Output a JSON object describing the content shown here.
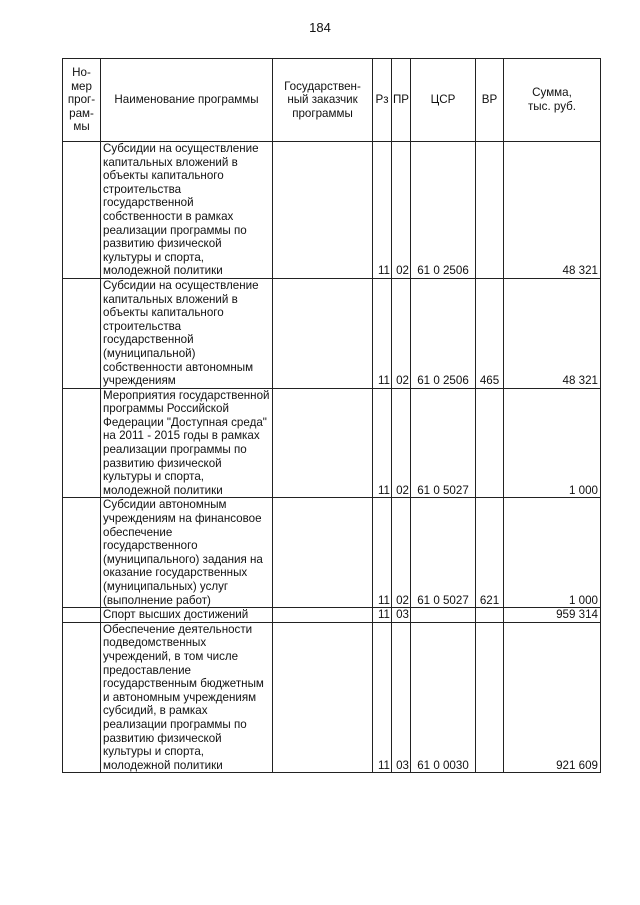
{
  "page_number": "184",
  "header": {
    "num": "Но-\nмер\nпрог-\nрам-\nмы",
    "name": "Наименование программы",
    "customer": "Государствен-\nный заказчик\nпрограммы",
    "rz": "Рз",
    "pr": "ПР",
    "csr": "ЦСР",
    "vr": "ВР",
    "sum": "Сумма,\nтыс. руб."
  },
  "rows": [
    {
      "num": "",
      "name": "Субсидии на осуществление\nкапитальных вложений в\nобъекты капитального\nстроительства\nгосударственной\nсобственности в рамках\nреализации программы по\nразвитию физической\nкультуры и спорта,\nмолодежной политики",
      "customer": "",
      "rz": "11",
      "pr": "02",
      "csr": "61 0 2506",
      "vr": "",
      "sum": "48 321"
    },
    {
      "num": "",
      "name": "Субсидии на осуществление\nкапитальных вложений в\nобъекты капитального\nстроительства\nгосударственной\n(муниципальной)\nсобственности  автономным\nучреждениям",
      "customer": "",
      "rz": "11",
      "pr": "02",
      "csr": "61 0 2506",
      "vr": "465",
      "sum": "48 321"
    },
    {
      "num": "",
      "name": "Мероприятия государственной\nпрограммы Российской\nФедерации \"Доступная среда\"\nна 2011 - 2015 годы в рамках\nреализации программы по\nразвитию физической\nкультуры и спорта,\nмолодежной политики",
      "customer": "",
      "rz": "11",
      "pr": "02",
      "csr": "61 0 5027",
      "vr": "",
      "sum": "1 000"
    },
    {
      "num": "",
      "name": "Субсидии автономным\nучреждениям на финансовое\nобеспечение государственного\n(муниципального) задания на\nоказание государственных\n(муниципальных) услуг\n(выполнение работ)",
      "customer": "",
      "rz": "11",
      "pr": "02",
      "csr": "61 0 5027",
      "vr": "621",
      "sum": "1 000"
    },
    {
      "num": "",
      "name": "Спорт высших достижений",
      "customer": "",
      "rz": "11",
      "pr": "03",
      "csr": "",
      "vr": "",
      "sum": "959 314"
    },
    {
      "num": "",
      "name": "Обеспечение деятельности\nподведомственных\nучреждений, в том числе\nпредоставление\nгосударственным бюджетным\nи автономным учреждениям\nсубсидий, в рамках\nреализации программы по\nразвитию физической\nкультуры и спорта,\nмолодежной политики",
      "customer": "",
      "rz": "11",
      "pr": "03",
      "csr": "61 0 0030",
      "vr": "",
      "sum": "921 609"
    }
  ]
}
